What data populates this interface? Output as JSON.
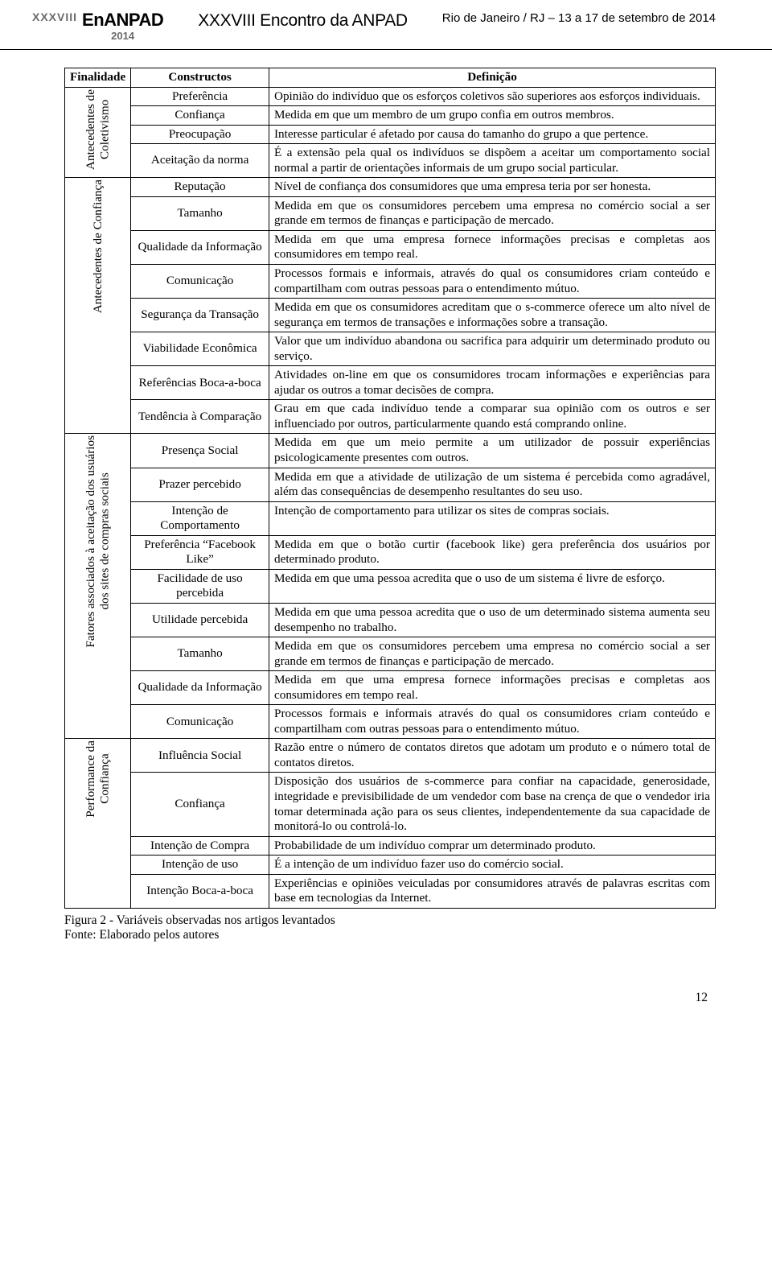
{
  "header": {
    "roman": "XXXVIII",
    "brand": "EnANPAD",
    "year_small": "2014",
    "title": "XXXVIII Encontro da ANPAD",
    "venue": "Rio de Janeiro / RJ – 13 a 17 de setembro de 2014"
  },
  "table": {
    "headers": {
      "finalidade": "Finalidade",
      "constructos": "Constructos",
      "definicao": "Definição"
    },
    "col_widths": {
      "cat": "4%",
      "construct": "22%",
      "def": "74%"
    },
    "groups": [
      {
        "label": "Antecedentes de\nColetivismo",
        "rows": [
          {
            "c": "Preferência",
            "d": "Opinião do indivíduo que os esforços coletivos são superiores aos esforços individuais."
          },
          {
            "c": "Confiança",
            "d": "Medida em que um membro de um grupo confia em outros membros."
          },
          {
            "c": "Preocupação",
            "d": "Interesse particular é afetado por causa do tamanho do grupo a que pertence."
          },
          {
            "c": "Aceitação da norma",
            "d": "É a extensão pela qual os indivíduos se dispõem a aceitar um comportamento social normal a partir de orientações informais de um grupo social particular."
          }
        ]
      },
      {
        "label": "Antecedentes de Confiança",
        "rows": [
          {
            "c": "Reputação",
            "d": "Nível de confiança dos consumidores que uma empresa teria por ser honesta."
          },
          {
            "c": "Tamanho",
            "d": "Medida em que os consumidores percebem uma empresa no comércio social a ser grande em termos de finanças e participação de mercado."
          },
          {
            "c": "Qualidade da Informação",
            "d": "Medida em que uma empresa fornece informações precisas e completas aos consumidores em tempo real."
          },
          {
            "c": "Comunicação",
            "d": "Processos formais e informais, através do qual os consumidores criam conteúdo e compartilham com outras pessoas para o entendimento mútuo."
          },
          {
            "c": "Segurança da Transação",
            "d": "Medida em que os consumidores acreditam que o s-commerce oferece um alto nível de segurança em termos de transações e informações sobre a transação."
          },
          {
            "c": "Viabilidade Econômica",
            "d": "Valor que um indivíduo abandona ou sacrifica para adquirir um determinado produto ou serviço."
          },
          {
            "c": "Referências Boca-a-boca",
            "d": "Atividades on-line em que os consumidores trocam informações e experiências para ajudar os outros a tomar decisões de compra."
          },
          {
            "c": "Tendência à Comparação",
            "d": "Grau em que cada indivíduo tende a comparar sua opinião com os outros e ser influenciado por outros, particularmente quando está comprando online."
          }
        ]
      },
      {
        "label": "Fatores associados à aceitação dos usuários\ndos sites de compras sociais",
        "rows": [
          {
            "c": "Presença Social",
            "d": "Medida em que um meio permite a um utilizador de possuir experiências psicologicamente presentes com outros."
          },
          {
            "c": "Prazer percebido",
            "d": "Medida em que a atividade de utilização de um sistema é percebida como agradável, além das consequências de desempenho resultantes do seu uso."
          },
          {
            "c": "Intenção de Comportamento",
            "d": "Intenção de comportamento para utilizar os sites de compras sociais."
          },
          {
            "c": "Preferência “Facebook Like”",
            "d": "Medida em que o botão curtir (facebook like) gera preferência dos usuários por determinado produto."
          },
          {
            "c": "Facilidade de uso percebida",
            "d": "Medida em que uma pessoa acredita que o uso de um sistema é livre de esforço."
          },
          {
            "c": "Utilidade percebida",
            "d": "Medida em que uma pessoa acredita que o uso de um determinado sistema aumenta seu desempenho no trabalho."
          },
          {
            "c": "Tamanho",
            "d": "Medida em que os consumidores percebem uma empresa no comércio social a ser grande em termos de finanças e participação de mercado."
          },
          {
            "c": "Qualidade da Informação",
            "d": "Medida em que uma empresa fornece informações precisas e completas aos consumidores em tempo real."
          },
          {
            "c": "Comunicação",
            "d": "Processos formais e informais através do qual os consumidores criam conteúdo e compartilham com outras pessoas para o entendimento mútuo."
          }
        ]
      },
      {
        "label": "Performance da\nConfiança",
        "rows": [
          {
            "c": "Influência Social",
            "d": "Razão entre o número de contatos diretos que adotam um produto e o número total de contatos diretos."
          },
          {
            "c": "Confiança",
            "d": "Disposição dos usuários de s-commerce para confiar na capacidade, generosidade, integridade e previsibilidade de um vendedor com base na crença de que o vendedor iria tomar determinada ação para os seus clientes, independentemente da sua capacidade de monitorá-lo ou controlá-lo."
          },
          {
            "c": "Intenção de Compra",
            "d": "Probabilidade de um indivíduo comprar um determinado produto."
          },
          {
            "c": "Intenção de uso",
            "d": "É a intenção de um indivíduo fazer uso do comércio social."
          },
          {
            "c": "Intenção Boca-a-boca",
            "d": "Experiências e opiniões veiculadas por consumidores através de palavras escritas com base em tecnologias da Internet."
          }
        ]
      }
    ]
  },
  "caption": "Figura 2 - Variáveis observadas nos artigos levantados",
  "source": "Fonte: Elaborado pelos autores",
  "pagenum": "12"
}
